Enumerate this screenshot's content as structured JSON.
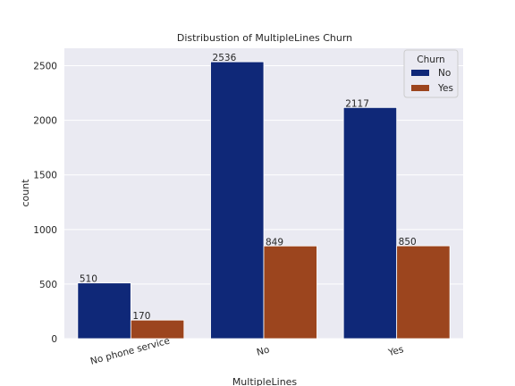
{
  "chart_data": {
    "type": "bar",
    "title": "Distribustion of MultipleLines Churn",
    "xlabel": "MultipleLines",
    "ylabel": "count",
    "categories": [
      "No phone service",
      "No",
      "Yes"
    ],
    "series": [
      {
        "name": "No",
        "values": [
          510,
          2536,
          2117
        ],
        "color": "#0f2878"
      },
      {
        "name": "Yes",
        "values": [
          170,
          849,
          850
        ],
        "color": "#9c451e"
      }
    ],
    "ylim": [
      0,
      2660
    ],
    "yticks": [
      0,
      500,
      1000,
      1500,
      2000,
      2500
    ],
    "grid": true,
    "legend": {
      "title": "Churn",
      "placement": "top-right"
    }
  },
  "colors": {
    "plot_background": "#eaeaf2",
    "grid": "#ffffff"
  }
}
